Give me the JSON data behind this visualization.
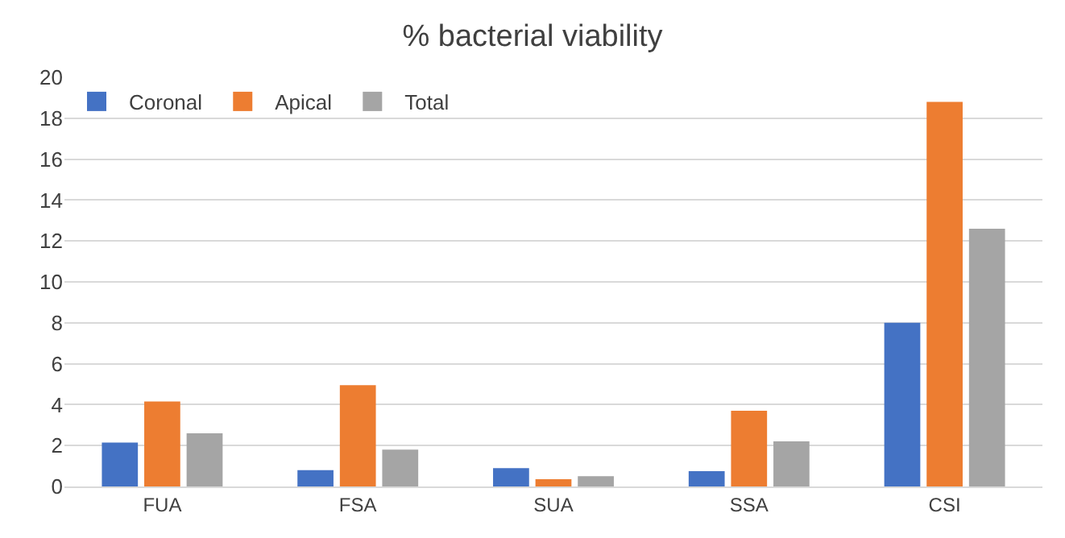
{
  "chart_data": {
    "type": "bar",
    "title": "% bacterial viability",
    "categories": [
      "FUA",
      "FSA",
      "SUA",
      "SSA",
      "CSI"
    ],
    "series": [
      {
        "name": "Coronal",
        "color": "#4472c4",
        "values": [
          2.15,
          0.8,
          0.9,
          0.75,
          8.0
        ]
      },
      {
        "name": "Apical",
        "color": "#ed7d31",
        "values": [
          4.15,
          4.95,
          0.35,
          3.7,
          18.8
        ]
      },
      {
        "name": "Total",
        "color": "#a5a5a5",
        "values": [
          2.6,
          1.8,
          0.5,
          2.2,
          12.6
        ]
      }
    ],
    "ylim": [
      0,
      20
    ],
    "yticks": [
      0,
      2,
      4,
      6,
      8,
      10,
      12,
      14,
      16,
      18,
      20
    ],
    "grid": "y",
    "legend": "top left"
  }
}
